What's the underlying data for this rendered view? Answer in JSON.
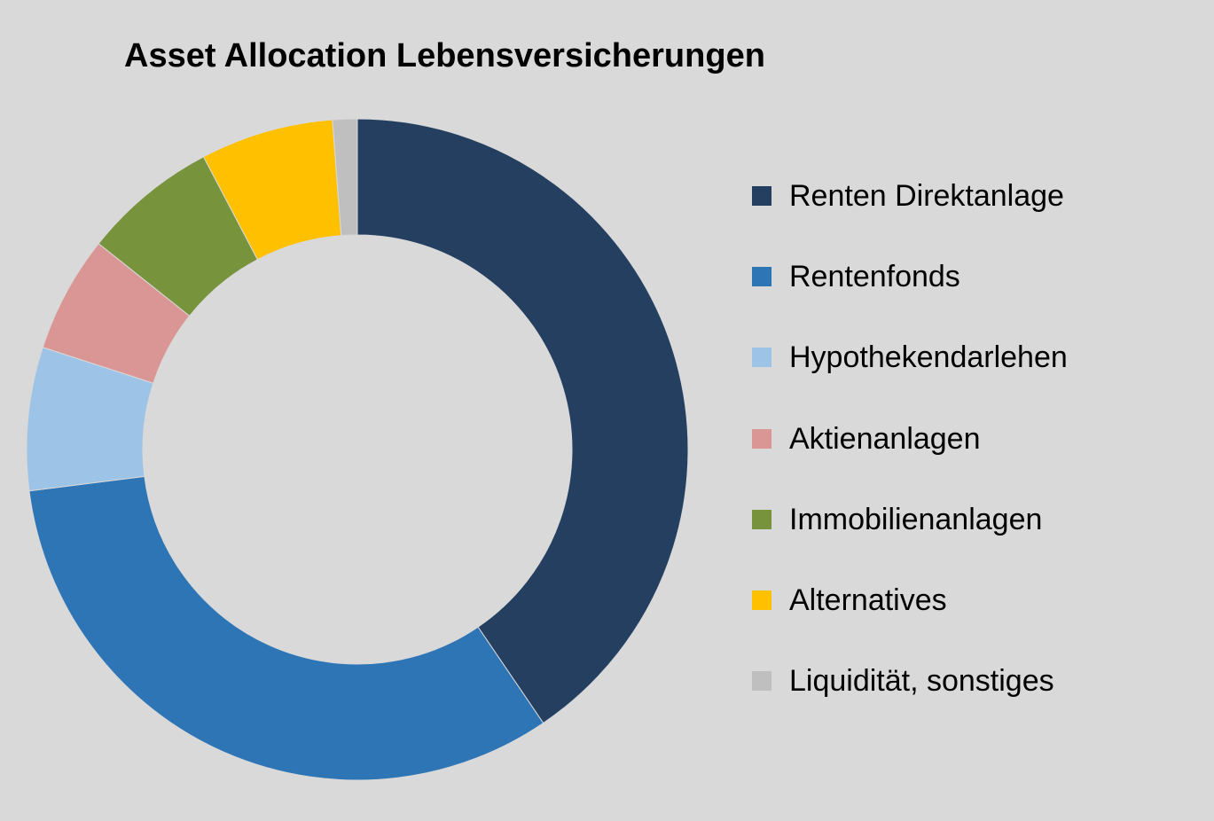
{
  "chart_data": {
    "type": "pie",
    "title": "Asset Allocation Lebensversicherungen",
    "donut": true,
    "legend_position": "right",
    "categories": [
      "Renten Direktanlage",
      "Rentenfonds",
      "Hypothekendarlehen",
      "Aktienanlagen",
      "Immobilienanlagen",
      "Alternatives",
      "Liquidität, sonstiges"
    ],
    "values": [
      40.5,
      32.5,
      7.0,
      5.7,
      6.6,
      6.5,
      1.2
    ],
    "unit": "%",
    "colors": [
      "#243f60",
      "#2e75b6",
      "#9dc3e6",
      "#da9694",
      "#77933c",
      "#ffc000",
      "#bfbfbf"
    ]
  }
}
